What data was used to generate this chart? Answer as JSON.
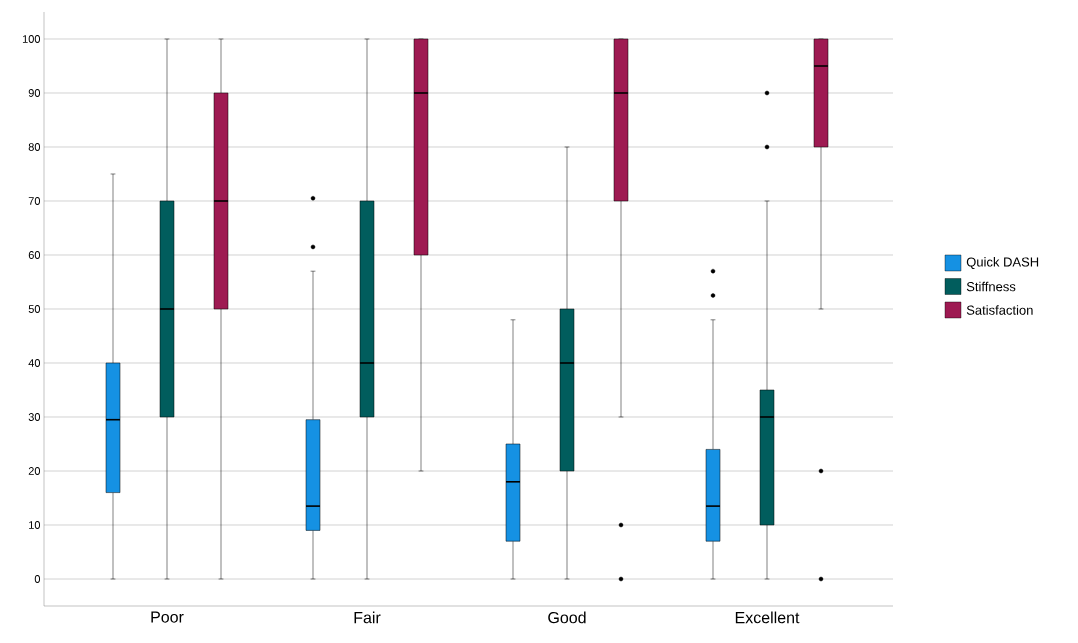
{
  "chart_data": {
    "type": "box",
    "categories": [
      "Poor",
      "Fair",
      "Good",
      "Excellent"
    ],
    "series": [
      {
        "name": "Quick DASH",
        "color": "#1591e3",
        "boxes": [
          {
            "low": 0,
            "q1": 16,
            "median": 29.5,
            "q3": 40,
            "high": 75
          },
          {
            "low": 0,
            "q1": 9,
            "median": 13.5,
            "q3": 29.5,
            "high": 57,
            "outliers": [
              61.5,
              70.5
            ]
          },
          {
            "low": 0,
            "q1": 7,
            "median": 18,
            "q3": 25,
            "high": 48
          },
          {
            "low": 0,
            "q1": 7,
            "median": 13.5,
            "q3": 24,
            "high": 48,
            "outliers": [
              52.5,
              57
            ]
          }
        ]
      },
      {
        "name": "Stiffness",
        "color": "#015d5d",
        "boxes": [
          {
            "low": 0,
            "q1": 30,
            "median": 50,
            "q3": 70,
            "high": 100
          },
          {
            "low": 0,
            "q1": 30,
            "median": 40,
            "q3": 70,
            "high": 100
          },
          {
            "low": 0,
            "q1": 20,
            "median": 40,
            "q3": 50,
            "high": 80
          },
          {
            "low": 0,
            "q1": 10,
            "median": 30,
            "q3": 35,
            "high": 70,
            "outliers": [
              80,
              90
            ]
          }
        ]
      },
      {
        "name": "Satisfaction",
        "color": "#9e1a52",
        "boxes": [
          {
            "low": 0,
            "q1": 50,
            "median": 70,
            "q3": 90,
            "high": 100
          },
          {
            "low": 20,
            "q1": 60,
            "median": 90,
            "q3": 100,
            "high": 100
          },
          {
            "low": 30,
            "q1": 70,
            "median": 90,
            "q3": 100,
            "high": 100,
            "outliers": [
              10,
              0
            ]
          },
          {
            "low": 50,
            "q1": 80,
            "median": 95,
            "q3": 100,
            "high": 100,
            "outliers": [
              20,
              0
            ]
          }
        ]
      }
    ],
    "ylim": [
      -5,
      105
    ],
    "yticks": [
      0,
      10,
      20,
      30,
      40,
      50,
      60,
      70,
      80,
      90,
      100
    ],
    "grid": "y",
    "legend": "right"
  }
}
